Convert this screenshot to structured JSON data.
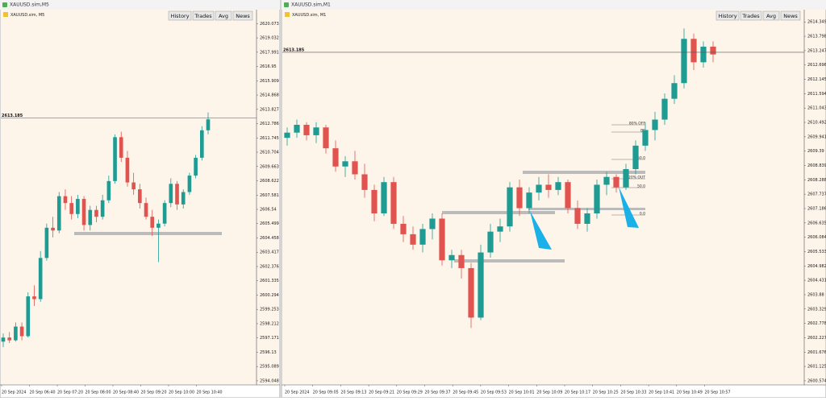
{
  "windows": [
    {
      "title": "XAUUSD.sim,M5",
      "symbol_label": "XAUUSD.sim, M5",
      "buttons": [
        "History",
        "Trades",
        "Avg",
        "News"
      ],
      "chart": {
        "type": "candlestick",
        "up_color": "#1e9c93",
        "down_color": "#e0534f",
        "ylim": [
          2593.75,
          2621.09
        ],
        "yticks": [
          2620.073,
          2619.032,
          2617.991,
          2616.95,
          2615.909,
          2614.868,
          2613.827,
          2612.786,
          2611.745,
          2610.704,
          2609.663,
          2608.622,
          2607.581,
          2606.54,
          2605.499,
          2604.458,
          2603.417,
          2602.376,
          2601.335,
          2600.294,
          2599.253,
          2598.212,
          2597.171,
          2596.13,
          2595.089,
          2594.048
        ],
        "price_line": {
          "value": 2613.185,
          "label": "2613.185"
        },
        "x_labels": [
          "20 Sep 2024",
          "20 Sep 06:40",
          "20 Sep 07:20",
          "20 Sep 08:00",
          "20 Sep 08:40",
          "20 Sep 09:20",
          "20 Sep 10:00",
          "20 Sep 10:40"
        ],
        "ohlc": [
          [
            2596.9,
            2597.5,
            2596.5,
            2597.2
          ],
          [
            2597.2,
            2597.6,
            2596.8,
            2597.0
          ],
          [
            2597.0,
            2598.3,
            2596.9,
            2598.0
          ],
          [
            2598.0,
            2598.3,
            2597.0,
            2597.3
          ],
          [
            2597.3,
            2600.5,
            2597.2,
            2600.2
          ],
          [
            2600.2,
            2601.0,
            2599.5,
            2600.0
          ],
          [
            2600.0,
            2603.5,
            2599.8,
            2603.0
          ],
          [
            2603.0,
            2605.5,
            2602.8,
            2605.2
          ],
          [
            2605.2,
            2606.0,
            2604.5,
            2605.0
          ],
          [
            2605.0,
            2607.8,
            2604.8,
            2607.5
          ],
          [
            2607.5,
            2608.0,
            2606.5,
            2607.0
          ],
          [
            2607.0,
            2607.5,
            2605.8,
            2606.2
          ],
          [
            2606.2,
            2607.6,
            2605.9,
            2607.3
          ],
          [
            2607.3,
            2607.5,
            2605.0,
            2605.4
          ],
          [
            2605.4,
            2606.8,
            2605.0,
            2606.5
          ],
          [
            2606.5,
            2606.8,
            2605.6,
            2606.0
          ],
          [
            2606.0,
            2607.6,
            2605.8,
            2607.2
          ],
          [
            2607.2,
            2609.0,
            2607.0,
            2608.6
          ],
          [
            2608.6,
            2612.0,
            2608.4,
            2611.8
          ],
          [
            2611.8,
            2612.2,
            2610.0,
            2610.3
          ],
          [
            2610.3,
            2610.8,
            2608.2,
            2608.5
          ],
          [
            2608.5,
            2609.2,
            2607.6,
            2608.0
          ],
          [
            2608.0,
            2608.4,
            2606.6,
            2607.0
          ],
          [
            2607.0,
            2607.4,
            2605.8,
            2606.0
          ],
          [
            2606.0,
            2606.5,
            2604.6,
            2605.2
          ],
          [
            2605.2,
            2605.8,
            2602.7,
            2605.5
          ],
          [
            2605.5,
            2607.2,
            2605.3,
            2607.0
          ],
          [
            2607.0,
            2608.8,
            2606.7,
            2608.4
          ],
          [
            2608.4,
            2608.6,
            2606.5,
            2606.9
          ],
          [
            2606.9,
            2608.0,
            2606.6,
            2607.8
          ],
          [
            2607.8,
            2609.2,
            2607.6,
            2609.0
          ],
          [
            2609.0,
            2610.5,
            2608.8,
            2610.3
          ],
          [
            2610.3,
            2612.6,
            2610.1,
            2612.3
          ],
          [
            2612.3,
            2613.6,
            2612.0,
            2613.1
          ]
        ]
      }
    },
    {
      "title": "XAUUSD.sim,M1",
      "symbol_label": "XAUUSD.sim, M1",
      "buttons": [
        "History",
        "Trades",
        "Avg",
        "News"
      ],
      "chart": {
        "type": "candlestick",
        "up_color": "#1e9c93",
        "down_color": "#e0534f",
        "ylim": [
          2600.417,
          2614.82
        ],
        "yticks": [
          2614.349,
          2613.798,
          2613.247,
          2612.696,
          2612.145,
          2611.594,
          2611.043,
          2610.492,
          2609.941,
          2609.39,
          2608.839,
          2608.288,
          2607.737,
          2607.186,
          2606.635,
          2606.084,
          2605.533,
          2604.982,
          2604.431,
          2603.88,
          2603.329,
          2602.778,
          2602.227,
          2601.676,
          2601.125,
          2600.574
        ],
        "price_line": {
          "value": 2613.185,
          "label": "2613.185"
        },
        "x_labels": [
          "20 Sep 2024",
          "20 Sep 09:05",
          "20 Sep 09:13",
          "20 Sep 09:21",
          "20 Sep 09:29",
          "20 Sep 09:37",
          "20 Sep 09:45",
          "20 Sep 09:53",
          "20 Sep 10:01",
          "20 Sep 10:09",
          "20 Sep 10:17",
          "20 Sep 10:25",
          "20 Sep 10:33",
          "20 Sep 10:41",
          "20 Sep 10:49",
          "20 Sep 10:57"
        ],
        "fib_labels": [
          "80% OFF",
          "BE",
          "50.0",
          "20% OUT",
          "50.0",
          "0.0"
        ],
        "ohlc": [
          [
            2609.9,
            2610.3,
            2609.6,
            2610.1
          ],
          [
            2610.1,
            2610.6,
            2609.9,
            2610.4
          ],
          [
            2610.4,
            2610.5,
            2609.8,
            2610.0
          ],
          [
            2610.0,
            2610.5,
            2609.7,
            2610.3
          ],
          [
            2610.3,
            2610.4,
            2609.3,
            2609.5
          ],
          [
            2609.5,
            2609.8,
            2608.6,
            2608.8
          ],
          [
            2608.8,
            2609.2,
            2608.4,
            2609.0
          ],
          [
            2609.0,
            2609.4,
            2608.3,
            2608.5
          ],
          [
            2608.5,
            2608.9,
            2607.6,
            2607.9
          ],
          [
            2607.9,
            2608.1,
            2606.7,
            2607.0
          ],
          [
            2607.0,
            2608.4,
            2606.9,
            2608.2
          ],
          [
            2608.2,
            2608.4,
            2606.4,
            2606.6
          ],
          [
            2606.6,
            2606.9,
            2605.9,
            2606.2
          ],
          [
            2606.2,
            2606.5,
            2605.6,
            2605.8
          ],
          [
            2605.8,
            2606.6,
            2605.5,
            2606.4
          ],
          [
            2606.4,
            2607.0,
            2606.0,
            2606.8
          ],
          [
            2606.8,
            2607.0,
            2605.0,
            2605.2
          ],
          [
            2605.2,
            2605.6,
            2604.9,
            2605.4
          ],
          [
            2605.4,
            2605.6,
            2604.5,
            2604.9
          ],
          [
            2604.9,
            2605.1,
            2602.6,
            2603.0
          ],
          [
            2603.0,
            2605.8,
            2602.9,
            2605.5
          ],
          [
            2605.5,
            2606.6,
            2605.3,
            2606.3
          ],
          [
            2606.3,
            2606.8,
            2605.9,
            2606.5
          ],
          [
            2606.5,
            2608.2,
            2606.3,
            2608.0
          ],
          [
            2608.0,
            2608.3,
            2606.9,
            2607.2
          ],
          [
            2607.2,
            2608.0,
            2607.0,
            2607.8
          ],
          [
            2607.8,
            2608.4,
            2607.5,
            2608.1
          ],
          [
            2608.1,
            2608.5,
            2607.6,
            2607.9
          ],
          [
            2607.9,
            2608.4,
            2607.7,
            2608.2
          ],
          [
            2608.2,
            2608.3,
            2607.0,
            2607.2
          ],
          [
            2607.2,
            2607.5,
            2606.4,
            2606.6
          ],
          [
            2606.6,
            2607.2,
            2606.3,
            2607.0
          ],
          [
            2607.0,
            2608.3,
            2606.8,
            2608.1
          ],
          [
            2608.1,
            2608.6,
            2607.7,
            2608.4
          ],
          [
            2608.4,
            2608.5,
            2607.8,
            2608.0
          ],
          [
            2608.0,
            2608.9,
            2607.9,
            2608.7
          ],
          [
            2608.7,
            2609.8,
            2608.5,
            2609.6
          ],
          [
            2609.6,
            2610.5,
            2609.4,
            2610.2
          ],
          [
            2610.2,
            2610.9,
            2609.8,
            2610.6
          ],
          [
            2610.6,
            2611.6,
            2610.4,
            2611.4
          ],
          [
            2611.4,
            2612.3,
            2611.2,
            2612.0
          ],
          [
            2612.0,
            2614.1,
            2611.8,
            2613.7
          ],
          [
            2613.7,
            2613.9,
            2612.5,
            2612.8
          ],
          [
            2612.8,
            2613.6,
            2612.6,
            2613.4
          ],
          [
            2613.4,
            2613.6,
            2612.8,
            2613.1
          ]
        ]
      }
    }
  ]
}
